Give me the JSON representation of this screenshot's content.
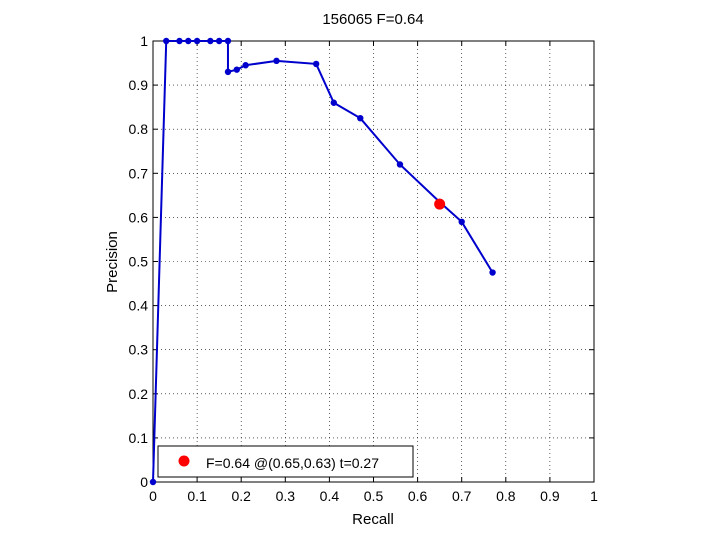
{
  "chart_data": {
    "type": "line",
    "title": "156065 F=0.64",
    "xlabel": "Recall",
    "ylabel": "Precision",
    "xlim": [
      0,
      1
    ],
    "ylim": [
      0,
      1
    ],
    "xticks": [
      "0",
      "0.1",
      "0.2",
      "0.3",
      "0.4",
      "0.5",
      "0.6",
      "0.7",
      "0.8",
      "0.9",
      "1"
    ],
    "yticks": [
      "0",
      "0.1",
      "0.2",
      "0.3",
      "0.4",
      "0.5",
      "0.6",
      "0.7",
      "0.8",
      "0.9",
      "1"
    ],
    "grid": true,
    "legend_position": "bottom-left",
    "series": [
      {
        "color": "#0000cc",
        "x": [
          0,
          0.03,
          0.06,
          0.08,
          0.1,
          0.13,
          0.15,
          0.17,
          0.17,
          0.19,
          0.21,
          0.28,
          0.37,
          0.41,
          0.47,
          0.56,
          0.65,
          0.7,
          0.77
        ],
        "y": [
          0,
          1.0,
          1.0,
          1.0,
          1.0,
          1.0,
          1.0,
          1.0,
          0.93,
          0.935,
          0.945,
          0.955,
          0.948,
          0.86,
          0.825,
          0.72,
          0.635,
          0.59,
          0.475
        ]
      }
    ],
    "highlight": {
      "x": 0.65,
      "y": 0.63,
      "color": "#ff0000",
      "label": "F=0.64 @(0.65,0.63) t=0.27"
    }
  }
}
